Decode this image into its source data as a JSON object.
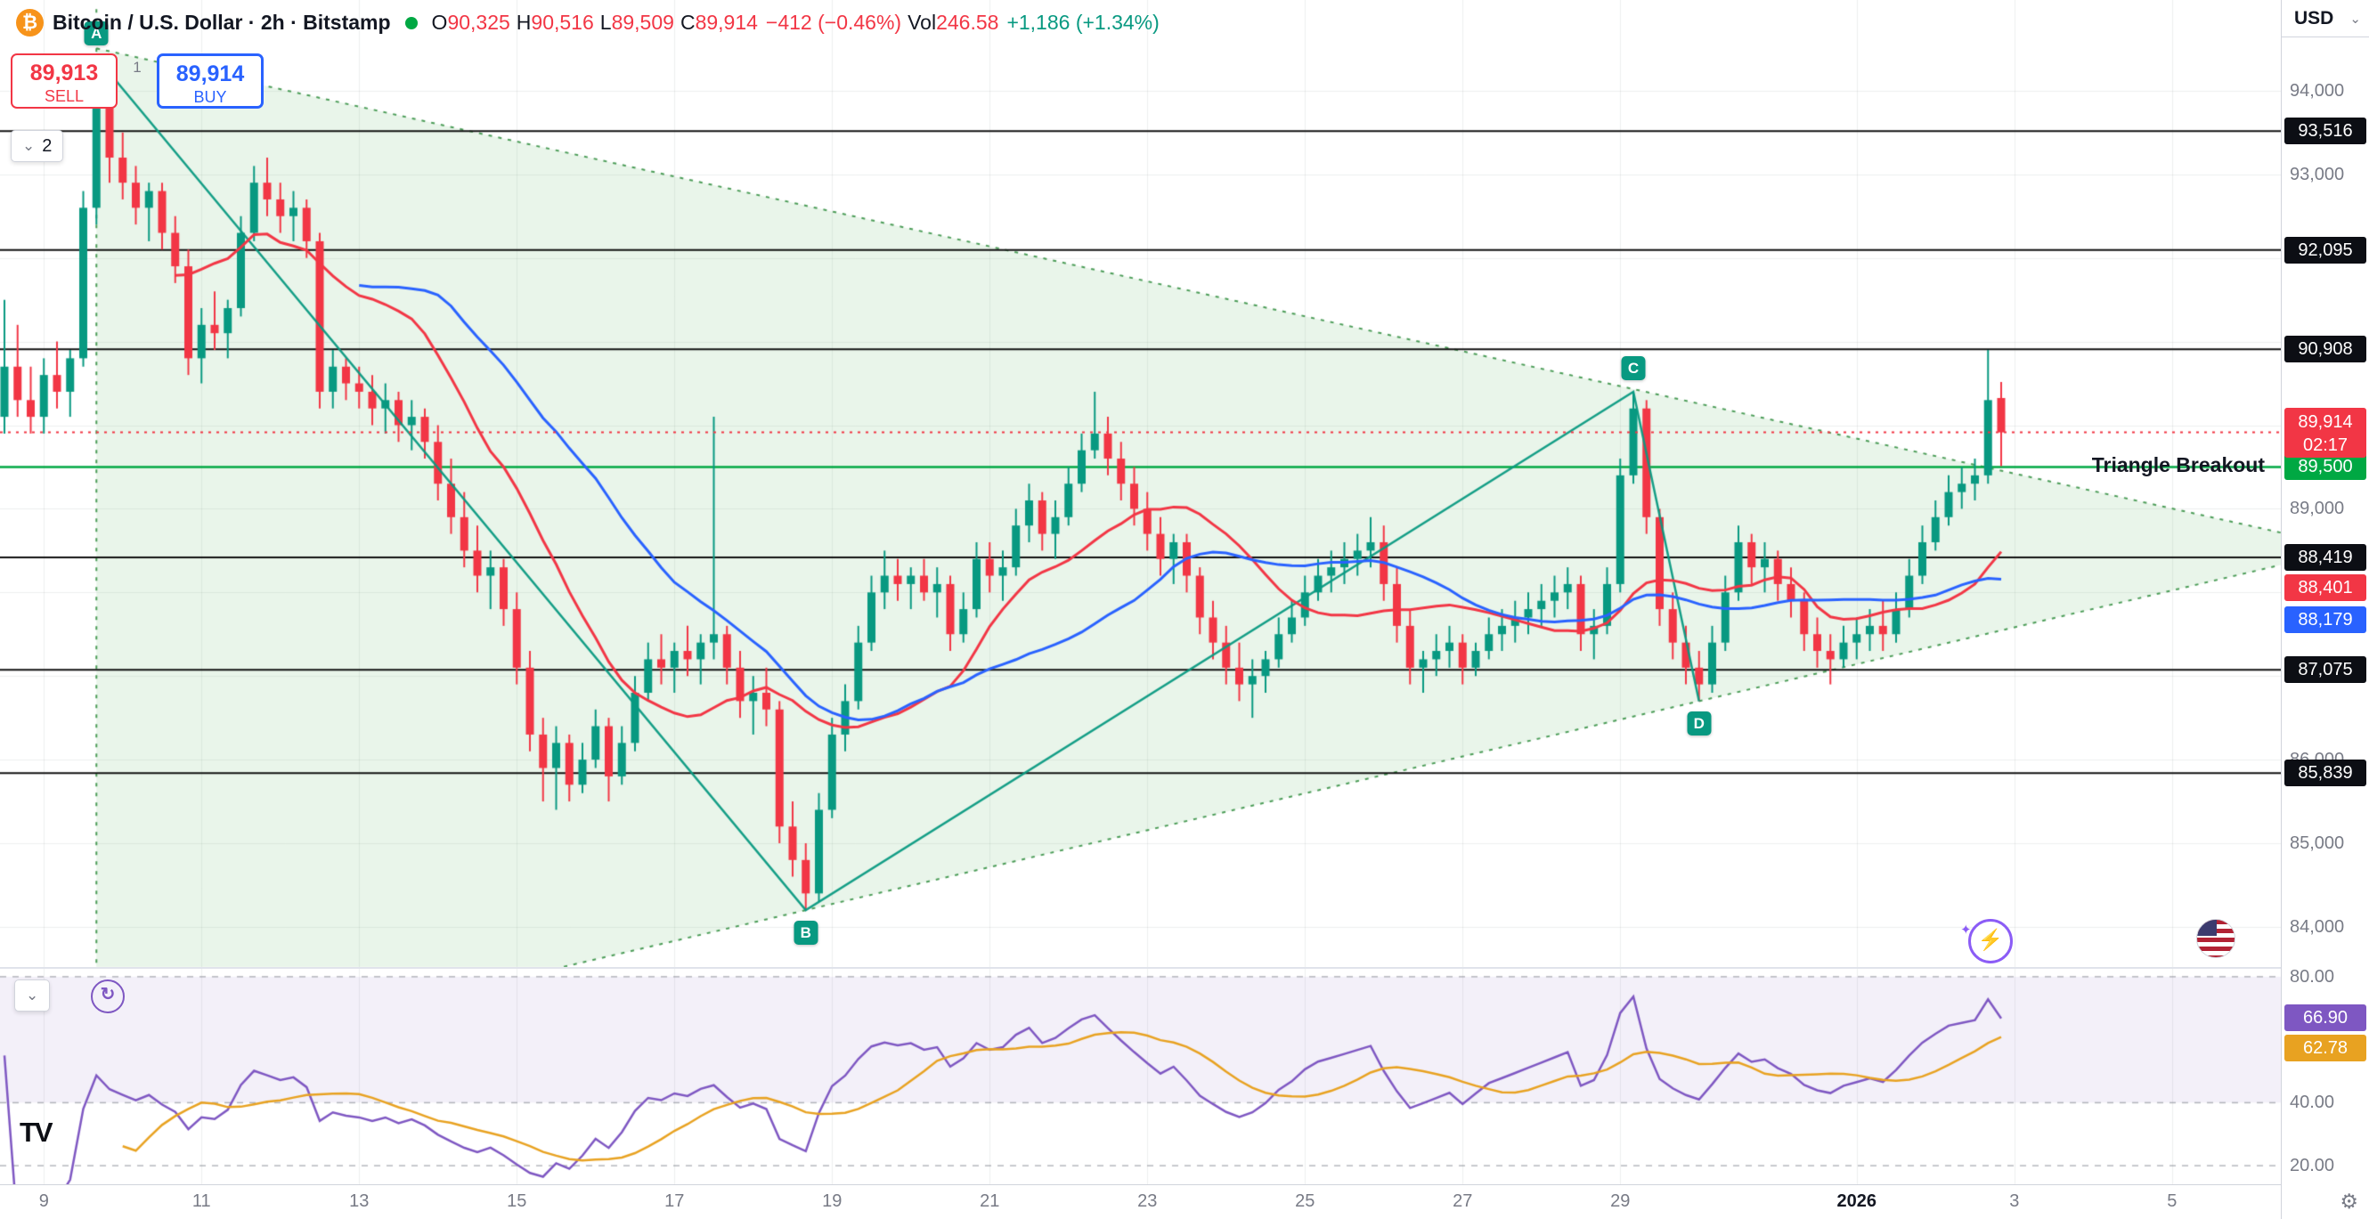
{
  "icons": {
    "bitcoin": "₿",
    "chevron_down": "⌄",
    "gear": "⚙",
    "refresh": "↻",
    "bolt": "⚡",
    "sparkle": "✦",
    "logo": "TV"
  },
  "header": {
    "title": "Bitcoin / U.S. Dollar · 2h · Bitstamp",
    "currency_button": "USD",
    "ohlc": {
      "o_label": "O",
      "o": "90,325",
      "h_label": "H",
      "h": "90,516",
      "l_label": "L",
      "l": "89,509",
      "c_label": "C",
      "c": "89,914",
      "change": "−412 (−0.46%)",
      "vol_label": "Vol",
      "vol": "246.58",
      "vol_change": "+1,186 (+1.34%)"
    }
  },
  "trade_panel": {
    "sell_price": "89,913",
    "sell_label": "SELL",
    "spread": "1",
    "buy_price": "89,914",
    "buy_label": "BUY"
  },
  "main_pane": {
    "collapse_count": "2"
  },
  "annotations": {
    "breakout_label": "Triangle Breakout",
    "points": [
      "A",
      "B",
      "C",
      "D"
    ]
  },
  "price_axis": {
    "grey_labels": [
      {
        "text": "94,000",
        "value": 94000
      },
      {
        "text": "93,000",
        "value": 93000
      },
      {
        "text": "89,000",
        "value": 89000
      },
      {
        "text": "86,000",
        "value": 86000
      },
      {
        "text": "85,000",
        "value": 85000
      },
      {
        "text": "84,000",
        "value": 84000
      }
    ],
    "level_labels": [
      {
        "text": "93,516",
        "value": 93516
      },
      {
        "text": "92,095",
        "value": 92095
      },
      {
        "text": "90,908",
        "value": 90908
      },
      {
        "text": "88,419",
        "value": 88419
      },
      {
        "text": "87,075",
        "value": 87075
      },
      {
        "text": "85,839",
        "value": 85839
      }
    ],
    "current_label": {
      "text": "89,914",
      "countdown": "02:17",
      "value": 89914
    },
    "green_level": {
      "text": "89,500",
      "value": 89500
    },
    "ma_labels": [
      {
        "text": "88,401"
      },
      {
        "text": "88,179"
      }
    ]
  },
  "indicator_pane": {
    "axis_labels": [
      {
        "text": "80.00",
        "value": 80
      },
      {
        "text": "40.00",
        "value": 40
      },
      {
        "text": "20.00",
        "value": 20
      }
    ],
    "value_labels": [
      {
        "text": "66.90",
        "value": 66.9
      },
      {
        "text": "62.78",
        "value": 62.78
      }
    ]
  },
  "time_axis": {
    "ticks": [
      {
        "label": "9",
        "candle": 4
      },
      {
        "label": "11",
        "candle": 16
      },
      {
        "label": "13",
        "candle": 28
      },
      {
        "label": "15",
        "candle": 40
      },
      {
        "label": "17",
        "candle": 52
      },
      {
        "label": "19",
        "candle": 64
      },
      {
        "label": "21",
        "candle": 76
      },
      {
        "label": "23",
        "candle": 88
      },
      {
        "label": "25",
        "candle": 100
      },
      {
        "label": "27",
        "candle": 112
      },
      {
        "label": "29",
        "candle": 124
      },
      {
        "label": "2026",
        "candle": 142,
        "bold": true
      },
      {
        "label": "3",
        "candle": 154
      },
      {
        "label": "5",
        "candle": 166
      }
    ]
  },
  "colors": {
    "up": "#089981",
    "down": "#f23645",
    "ma_fast": "#f23645",
    "ma_slow": "#2962ff",
    "breakout": "#00a843",
    "level_line": "#111111",
    "osc_fast": "#7e57c2",
    "osc_slow": "#e8a221",
    "grid": "rgba(42,46,57,0.08)",
    "pattern_fill": "rgba(76,175,80,0.12)",
    "pattern_line": "rgba(46,140,60,0.85)"
  },
  "chart_data": {
    "type": "candlestick",
    "symbol": "Bitcoin / U.S. Dollar",
    "interval": "2h",
    "exchange": "Bitstamp",
    "last_bar": {
      "open": 90325,
      "high": 90516,
      "low": 89509,
      "close": 89914,
      "change": -412,
      "change_pct": -0.46,
      "volume": 246.58,
      "volume_change": 1186,
      "volume_change_pct": 1.34
    },
    "price_axis_range": [
      95085,
      83520
    ],
    "grid_prices": [
      94000,
      93000,
      92000,
      91000,
      90000,
      89000,
      88000,
      87000,
      86000,
      85000,
      84000
    ],
    "levels": [
      93516,
      92095,
      90908,
      88419,
      87075,
      85839
    ],
    "current_price_line": 89914,
    "breakout_line": 89500,
    "candles": [
      [
        90100,
        91500,
        89900,
        90700
      ],
      [
        90700,
        91200,
        90100,
        90300
      ],
      [
        90300,
        90700,
        89900,
        90100
      ],
      [
        90100,
        90800,
        89900,
        90600
      ],
      [
        90600,
        91000,
        90200,
        90400
      ],
      [
        90400,
        90900,
        90100,
        90800
      ],
      [
        90800,
        92800,
        90700,
        92600
      ],
      [
        92600,
        94400,
        92400,
        93900
      ],
      [
        93900,
        94100,
        92900,
        93200
      ],
      [
        93200,
        93500,
        92700,
        92900
      ],
      [
        92900,
        93100,
        92400,
        92600
      ],
      [
        92600,
        92900,
        92200,
        92800
      ],
      [
        92800,
        92900,
        92100,
        92300
      ],
      [
        92300,
        92500,
        91700,
        91900
      ],
      [
        91900,
        92100,
        90600,
        90800
      ],
      [
        90800,
        91400,
        90500,
        91200
      ],
      [
        91200,
        91600,
        90900,
        91100
      ],
      [
        91100,
        91500,
        90800,
        91400
      ],
      [
        91400,
        92500,
        91300,
        92300
      ],
      [
        92300,
        93100,
        92200,
        92900
      ],
      [
        92900,
        93200,
        92500,
        92700
      ],
      [
        92700,
        92900,
        92300,
        92500
      ],
      [
        92500,
        92800,
        92200,
        92600
      ],
      [
        92600,
        92700,
        92000,
        92200
      ],
      [
        92200,
        92300,
        90200,
        90400
      ],
      [
        90400,
        90900,
        90200,
        90700
      ],
      [
        90700,
        90800,
        90300,
        90500
      ],
      [
        90500,
        90700,
        90200,
        90400
      ],
      [
        90400,
        90600,
        90000,
        90200
      ],
      [
        90200,
        90500,
        89900,
        90300
      ],
      [
        90300,
        90400,
        89800,
        90000
      ],
      [
        90000,
        90300,
        89700,
        90100
      ],
      [
        90100,
        90200,
        89600,
        89800
      ],
      [
        89800,
        90000,
        89100,
        89300
      ],
      [
        89300,
        89600,
        88700,
        88900
      ],
      [
        88900,
        89200,
        88300,
        88500
      ],
      [
        88500,
        88800,
        88000,
        88200
      ],
      [
        88200,
        88500,
        87800,
        88300
      ],
      [
        88300,
        88400,
        87600,
        87800
      ],
      [
        87800,
        88000,
        86900,
        87100
      ],
      [
        87100,
        87300,
        86100,
        86300
      ],
      [
        86300,
        86500,
        85500,
        85900
      ],
      [
        85900,
        86400,
        85400,
        86200
      ],
      [
        86200,
        86300,
        85500,
        85700
      ],
      [
        85700,
        86200,
        85600,
        86000
      ],
      [
        86000,
        86600,
        85900,
        86400
      ],
      [
        86400,
        86500,
        85500,
        85800
      ],
      [
        85800,
        86400,
        85700,
        86200
      ],
      [
        86200,
        87000,
        86100,
        86800
      ],
      [
        86800,
        87400,
        86700,
        87200
      ],
      [
        87200,
        87500,
        86900,
        87100
      ],
      [
        87100,
        87400,
        86800,
        87300
      ],
      [
        87300,
        87600,
        87000,
        87200
      ],
      [
        87200,
        87500,
        86900,
        87400
      ],
      [
        87400,
        90100,
        87200,
        87500
      ],
      [
        87500,
        87600,
        86900,
        87100
      ],
      [
        87100,
        87300,
        86500,
        86700
      ],
      [
        86700,
        87000,
        86300,
        86800
      ],
      [
        86800,
        87100,
        86400,
        86600
      ],
      [
        86600,
        86700,
        85000,
        85200
      ],
      [
        85200,
        85500,
        84600,
        84800
      ],
      [
        84800,
        85000,
        84200,
        84400
      ],
      [
        84400,
        85600,
        84300,
        85400
      ],
      [
        85400,
        86500,
        85300,
        86300
      ],
      [
        86300,
        86900,
        86100,
        86700
      ],
      [
        86700,
        87600,
        86600,
        87400
      ],
      [
        87400,
        88200,
        87300,
        88000
      ],
      [
        88000,
        88500,
        87800,
        88200
      ],
      [
        88200,
        88400,
        87900,
        88100
      ],
      [
        88100,
        88300,
        87800,
        88200
      ],
      [
        88200,
        88400,
        87900,
        88000
      ],
      [
        88000,
        88300,
        87700,
        88100
      ],
      [
        88100,
        88200,
        87300,
        87500
      ],
      [
        87500,
        88000,
        87400,
        87800
      ],
      [
        87800,
        88600,
        87700,
        88400
      ],
      [
        88400,
        88600,
        88000,
        88200
      ],
      [
        88200,
        88500,
        87900,
        88300
      ],
      [
        88300,
        89000,
        88200,
        88800
      ],
      [
        88800,
        89300,
        88600,
        89100
      ],
      [
        89100,
        89200,
        88500,
        88700
      ],
      [
        88700,
        89100,
        88400,
        88900
      ],
      [
        88900,
        89500,
        88800,
        89300
      ],
      [
        89300,
        89900,
        89200,
        89700
      ],
      [
        89700,
        90400,
        89600,
        89900
      ],
      [
        89900,
        90100,
        89400,
        89600
      ],
      [
        89600,
        89800,
        89100,
        89300
      ],
      [
        89300,
        89500,
        88800,
        89000
      ],
      [
        89000,
        89200,
        88500,
        88700
      ],
      [
        88700,
        88900,
        88200,
        88400
      ],
      [
        88400,
        88700,
        88100,
        88600
      ],
      [
        88600,
        88700,
        88000,
        88200
      ],
      [
        88200,
        88300,
        87500,
        87700
      ],
      [
        87700,
        87900,
        87200,
        87400
      ],
      [
        87400,
        87600,
        86900,
        87100
      ],
      [
        87100,
        87400,
        86700,
        86900
      ],
      [
        86900,
        87200,
        86500,
        87000
      ],
      [
        87000,
        87300,
        86800,
        87200
      ],
      [
        87200,
        87700,
        87100,
        87500
      ],
      [
        87500,
        87900,
        87400,
        87700
      ],
      [
        87700,
        88200,
        87600,
        88000
      ],
      [
        88000,
        88400,
        87900,
        88200
      ],
      [
        88200,
        88500,
        88000,
        88300
      ],
      [
        88300,
        88600,
        88100,
        88400
      ],
      [
        88400,
        88700,
        88200,
        88500
      ],
      [
        88500,
        88900,
        88300,
        88600
      ],
      [
        88600,
        88800,
        87900,
        88100
      ],
      [
        88100,
        88300,
        87400,
        87600
      ],
      [
        87600,
        87800,
        86900,
        87100
      ],
      [
        87100,
        87300,
        86800,
        87200
      ],
      [
        87200,
        87500,
        87000,
        87300
      ],
      [
        87300,
        87600,
        87100,
        87400
      ],
      [
        87400,
        87500,
        86900,
        87100
      ],
      [
        87100,
        87400,
        87000,
        87300
      ],
      [
        87300,
        87700,
        87200,
        87500
      ],
      [
        87500,
        87800,
        87300,
        87600
      ],
      [
        87600,
        87900,
        87400,
        87700
      ],
      [
        87700,
        88000,
        87500,
        87800
      ],
      [
        87800,
        88100,
        87600,
        87900
      ],
      [
        87900,
        88200,
        87700,
        88000
      ],
      [
        88000,
        88300,
        87800,
        88100
      ],
      [
        88100,
        88200,
        87300,
        87500
      ],
      [
        87500,
        87800,
        87200,
        87600
      ],
      [
        87600,
        88300,
        87500,
        88100
      ],
      [
        88100,
        89600,
        88000,
        89400
      ],
      [
        89400,
        90400,
        89300,
        90200
      ],
      [
        90200,
        90300,
        88700,
        88900
      ],
      [
        88900,
        89000,
        87600,
        87800
      ],
      [
        87800,
        88000,
        87200,
        87400
      ],
      [
        87400,
        87600,
        86900,
        87100
      ],
      [
        87100,
        87300,
        86700,
        86900
      ],
      [
        86900,
        87600,
        86800,
        87400
      ],
      [
        87400,
        88200,
        87300,
        88000
      ],
      [
        88000,
        88800,
        87900,
        88600
      ],
      [
        88600,
        88700,
        88100,
        88300
      ],
      [
        88300,
        88600,
        88000,
        88400
      ],
      [
        88400,
        88500,
        87900,
        88100
      ],
      [
        88100,
        88300,
        87700,
        87900
      ],
      [
        87900,
        88000,
        87300,
        87500
      ],
      [
        87500,
        87700,
        87100,
        87300
      ],
      [
        87300,
        87500,
        86900,
        87200
      ],
      [
        87200,
        87600,
        87100,
        87400
      ],
      [
        87400,
        87700,
        87200,
        87500
      ],
      [
        87500,
        87800,
        87300,
        87600
      ],
      [
        87600,
        87900,
        87300,
        87500
      ],
      [
        87500,
        88000,
        87400,
        87800
      ],
      [
        87800,
        88400,
        87700,
        88200
      ],
      [
        88200,
        88800,
        88100,
        88600
      ],
      [
        88600,
        89100,
        88500,
        88900
      ],
      [
        88900,
        89400,
        88800,
        89200
      ],
      [
        89200,
        89500,
        89000,
        89300
      ],
      [
        89300,
        89600,
        89100,
        89400
      ],
      [
        89400,
        90900,
        89300,
        90300
      ],
      [
        90325,
        90516,
        89509,
        89914
      ]
    ],
    "moving_averages": [
      {
        "name": "MA fast",
        "period": 14,
        "color": "#f23645",
        "last_label": "88,401"
      },
      {
        "name": "MA slow",
        "period": 28,
        "color": "#2962ff",
        "last_label": "88,179"
      }
    ],
    "oscillator": {
      "type": "RSI",
      "period": 14,
      "range": [
        82.8,
        14.1
      ],
      "bands": [
        80,
        40,
        20
      ],
      "series": [
        {
          "name": "RSI",
          "color": "#7e57c2",
          "last": 66.9
        },
        {
          "name": "RSI MA",
          "color": "#e8a221",
          "last": 62.78
        }
      ]
    },
    "pattern": {
      "type": "triangle",
      "label": "Triangle Breakout",
      "points": {
        "A": {
          "candle": 8,
          "price": 94400
        },
        "B": {
          "candle": 62,
          "price": 84200
        },
        "C": {
          "candle": 125,
          "price": 90400
        },
        "D": {
          "candle": 130,
          "price": 86700
        }
      }
    }
  }
}
